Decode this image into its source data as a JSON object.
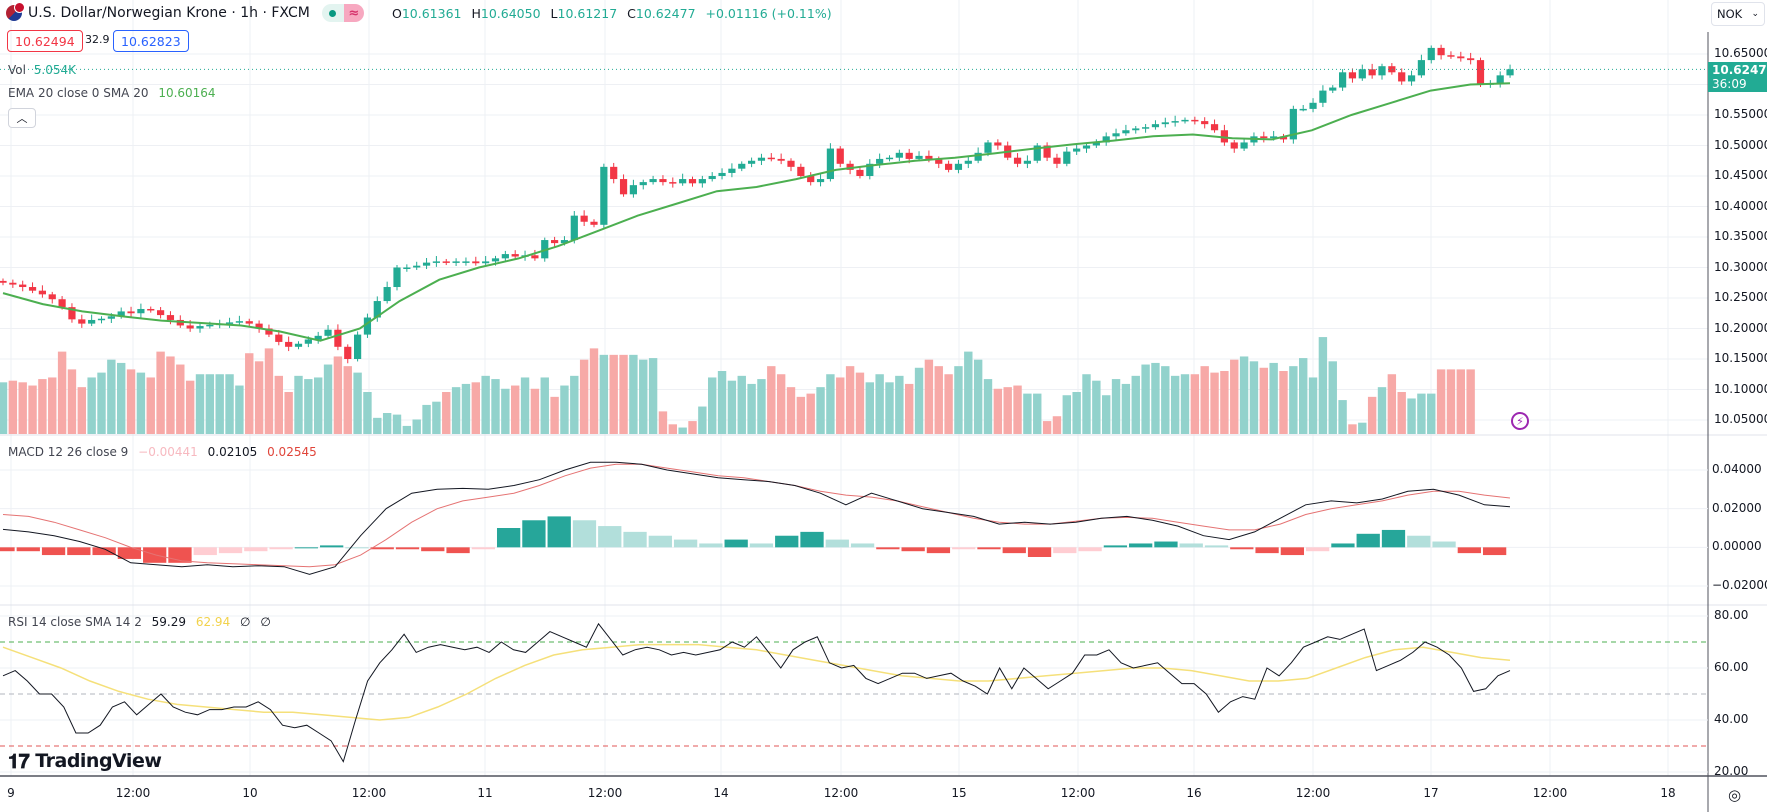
{
  "header": {
    "symbol_title": "U.S. Dollar/Norwegian Krone · 1h · FXCM",
    "flag_icon": "us-no-flag-icon",
    "market_status": "open",
    "ohlc": {
      "open_label": "O",
      "open": "10.61361",
      "high_label": "H",
      "high": "10.64050",
      "low_label": "L",
      "low": "10.61217",
      "close_label": "C",
      "close": "10.62477",
      "change": "+0.01116 (+0.11%)"
    },
    "bid": "10.62494",
    "spread": "32.9",
    "ask": "10.62823"
  },
  "legend": {
    "volume_label": "Vol",
    "volume_value": "5.054K",
    "ema_label": "EMA 20 close 0 SMA 20",
    "ema_value": "10.60164",
    "collapse_icon": "chevron-up-icon",
    "macd_label": "MACD 12 26 close 9",
    "macd_hist": "−0.00441",
    "macd_line": "0.02105",
    "macd_signal": "0.02545",
    "rsi_label": "RSI 14 close SMA 14 2",
    "rsi_value": "59.29",
    "rsi_sma": "62.94",
    "rsi_extra1": "∅",
    "rsi_extra2": "∅"
  },
  "currency_select": "NOK",
  "last_price_tag": {
    "price": "10.62477",
    "countdown": "36:09"
  },
  "branding": "TradingView",
  "colors": {
    "up": "#22ab94",
    "down": "#f23645",
    "vol_up": "#92d2cc",
    "vol_down": "#f7a9a7",
    "ema": "#4caf50",
    "macd": "#131722",
    "signal": "#e57373",
    "rsi": "#131722",
    "rsi_sma": "#f5e07a"
  },
  "chart_data": [
    {
      "type": "candlestick",
      "title": "USD/NOK 1h",
      "price_axis_ticks": [
        "10.65000",
        "10.55000",
        "10.50000",
        "10.45000",
        "10.40000",
        "10.35000",
        "10.30000",
        "10.25000",
        "10.20000",
        "10.15000",
        "10.10000",
        "10.05000"
      ],
      "time_axis_ticks": [
        "9",
        "12:00",
        "10",
        "12:00",
        "11",
        "12:00",
        "14",
        "12:00",
        "15",
        "12:00",
        "16",
        "12:00",
        "17",
        "12:00",
        "18"
      ],
      "ylim": [
        10.03,
        10.68
      ],
      "closes": [
        10.275,
        10.272,
        10.268,
        10.262,
        10.256,
        10.248,
        10.235,
        10.215,
        10.208,
        10.214,
        10.216,
        10.22,
        10.228,
        10.225,
        10.232,
        10.23,
        10.222,
        10.214,
        10.205,
        10.2,
        10.204,
        10.206,
        10.208,
        10.21,
        10.212,
        10.208,
        10.2,
        10.19,
        10.178,
        10.17,
        10.175,
        10.182,
        10.188,
        10.198,
        10.17,
        10.15,
        10.19,
        10.218,
        10.245,
        10.268,
        10.3,
        10.3,
        10.303,
        10.308,
        10.31,
        10.308,
        10.31,
        10.31,
        10.307,
        10.31,
        10.315,
        10.322,
        10.318,
        10.32,
        10.315,
        10.345,
        10.34,
        10.345,
        10.385,
        10.375,
        10.37,
        10.465,
        10.445,
        10.42,
        10.435,
        10.44,
        10.445,
        10.44,
        10.438,
        10.445,
        10.438,
        10.445,
        10.45,
        10.455,
        10.462,
        10.47,
        10.475,
        10.48,
        10.478,
        10.475,
        10.465,
        10.45,
        10.44,
        10.445,
        10.495,
        10.47,
        10.46,
        10.45,
        10.47,
        10.478,
        10.48,
        10.488,
        10.478,
        10.483,
        10.478,
        10.47,
        10.46,
        10.47,
        10.475,
        10.488,
        10.505,
        10.5,
        10.48,
        10.47,
        10.475,
        10.5,
        10.48,
        10.47,
        10.49,
        10.495,
        10.5,
        10.505,
        10.515,
        10.52,
        10.525,
        10.528,
        10.53,
        10.535,
        10.538,
        10.54,
        10.542,
        10.54,
        10.535,
        10.525,
        10.505,
        10.495,
        10.505,
        10.515,
        10.512,
        10.515,
        10.51,
        10.56,
        10.56,
        10.57,
        10.59,
        10.595,
        10.62,
        10.61,
        10.625,
        10.615,
        10.63,
        10.62,
        10.605,
        10.615,
        10.64,
        10.66,
        10.648,
        10.646,
        10.643,
        10.64,
        10.6,
        10.602,
        10.615,
        10.625
      ],
      "volume_k": [
        3.2,
        3.3,
        3.2,
        3.0,
        3.4,
        3.5,
        5.1,
        4.0,
        2.9,
        3.5,
        3.8,
        4.6,
        4.4,
        4.0,
        3.8,
        3.5,
        5.1,
        4.8,
        4.3,
        3.3,
        3.7,
        3.7,
        3.7,
        3.7,
        3.0,
        5.0,
        4.5,
        5.3,
        3.6,
        2.6,
        3.6,
        3.4,
        3.5,
        4.3,
        4.8,
        4.2,
        3.8,
        2.6,
        1.0,
        1.3,
        1.2,
        0.5,
        0.9,
        1.8,
        2.0,
        2.6,
        2.9,
        3.1,
        3.2,
        3.6,
        3.4,
        2.8,
        3.0,
        3.5,
        2.8,
        3.5,
        2.3,
        3.0,
        3.6,
        4.6,
        5.3,
        4.9,
        4.9,
        4.9,
        4.9,
        4.6,
        4.7,
        1.4,
        0.6,
        0.4,
        0.8,
        1.7,
        3.5,
        3.9,
        3.3,
        3.6,
        3.1,
        3.4,
        4.2,
        3.7,
        2.9,
        2.3,
        2.5,
        2.9,
        3.7,
        3.5,
        4.2,
        3.8,
        3.2,
        3.7,
        3.2,
        3.6,
        3.1,
        4.1,
        4.6,
        4.2,
        3.7,
        4.2,
        5.1,
        4.6,
        3.4,
        2.8,
        2.9,
        3.0,
        2.5,
        2.5,
        0.8,
        1.1,
        2.4,
        2.6,
        3.7,
        3.3,
        2.4,
        3.4,
        3.1,
        3.6,
        4.3,
        4.4,
        4.2,
        3.6,
        3.7,
        3.7,
        4.2,
        3.8,
        3.9,
        4.6,
        4.8,
        4.5,
        4.1,
        4.4,
        3.9,
        4.2,
        4.7,
        3.5,
        6.0,
        4.5,
        2.1,
        0.6,
        0.7,
        2.3,
        2.9,
        3.7,
        2.6,
        2.2,
        2.5,
        2.5,
        4.0,
        4.0,
        4.0,
        4.0
      ],
      "ema20": [
        10.258,
        10.24,
        10.228,
        10.22,
        10.213,
        10.209,
        10.205,
        10.195,
        10.18,
        10.2,
        10.245,
        10.28,
        10.3,
        10.315,
        10.335,
        10.36,
        10.385,
        10.405,
        10.425,
        10.432,
        10.445,
        10.46,
        10.468,
        10.475,
        10.48,
        10.487,
        10.495,
        10.502,
        10.508,
        10.515,
        10.518,
        10.512,
        10.51,
        10.525,
        10.55,
        10.57,
        10.59,
        10.6,
        10.602
      ],
      "series": [
        {
          "name": "MACD",
          "values": [
            0.0093,
            0.008,
            0.006,
            0.003,
            -0.001,
            -0.008,
            -0.009,
            -0.01,
            -0.009,
            -0.01,
            -0.0095,
            -0.01,
            -0.014,
            -0.01,
            0.006,
            0.02,
            0.028,
            0.03,
            0.0305,
            0.03,
            0.032,
            0.035,
            0.04,
            0.044,
            0.044,
            0.043,
            0.04,
            0.038,
            0.036,
            0.035,
            0.034,
            0.032,
            0.028,
            0.022,
            0.028,
            0.024,
            0.02,
            0.018,
            0.016,
            0.012,
            0.013,
            0.012,
            0.013,
            0.015,
            0.016,
            0.014,
            0.011,
            0.006,
            0.004,
            0.008,
            0.015,
            0.022,
            0.024,
            0.023,
            0.025,
            0.029,
            0.03,
            0.027,
            0.022,
            0.021
          ]
        },
        {
          "name": "Signal",
          "values": [
            0.017,
            0.016,
            0.013,
            0.009,
            0.005,
            0.0,
            -0.004,
            -0.007,
            -0.008,
            -0.0085,
            -0.009,
            -0.0095,
            -0.01,
            -0.009,
            -0.004,
            0.004,
            0.013,
            0.02,
            0.024,
            0.026,
            0.028,
            0.032,
            0.037,
            0.041,
            0.043,
            0.043,
            0.041,
            0.039,
            0.037,
            0.036,
            0.034,
            0.032,
            0.029,
            0.027,
            0.026,
            0.024,
            0.021,
            0.018,
            0.015,
            0.013,
            0.012,
            0.012,
            0.0135,
            0.015,
            0.0155,
            0.015,
            0.013,
            0.011,
            0.009,
            0.009,
            0.012,
            0.017,
            0.02,
            0.022,
            0.024,
            0.027,
            0.029,
            0.029,
            0.027,
            0.0255
          ]
        },
        {
          "name": "Histogram",
          "values": [
            -0.002,
            -0.002,
            -0.004,
            -0.004,
            -0.004,
            -0.006,
            -0.008,
            -0.008,
            -0.004,
            -0.003,
            -0.002,
            -0.001,
            0.0,
            0.001,
            0.0,
            -0.001,
            -0.001,
            -0.002,
            -0.003,
            -0.001,
            0.01,
            0.014,
            0.016,
            0.014,
            0.011,
            0.008,
            0.006,
            0.004,
            0.002,
            0.004,
            0.002,
            0.006,
            0.008,
            0.004,
            0.002,
            -0.001,
            -0.002,
            -0.003,
            -0.001,
            -0.001,
            -0.003,
            -0.005,
            -0.003,
            -0.002,
            0.001,
            0.002,
            0.003,
            0.002,
            0.001,
            -0.001,
            -0.003,
            -0.004,
            -0.002,
            0.002,
            0.007,
            0.009,
            0.006,
            0.003,
            -0.003,
            -0.004
          ]
        }
      ],
      "macd_axis_ticks": [
        "0.04000",
        "0.02000",
        "0.00000",
        "−0.02000"
      ],
      "rsi": [
        57,
        59,
        55,
        50,
        50,
        45,
        35,
        35,
        38,
        45,
        47,
        42,
        46,
        50,
        45,
        43,
        42,
        44,
        44,
        45,
        45,
        47,
        44,
        38,
        37,
        38,
        35,
        32,
        24,
        40,
        55,
        62,
        67,
        73,
        66,
        68,
        69,
        68,
        67,
        68,
        66,
        70,
        67,
        66,
        70,
        74,
        72,
        70,
        68,
        77,
        71,
        65,
        67,
        68,
        67,
        65,
        66,
        65,
        66,
        67,
        70,
        68,
        72,
        66,
        60,
        67,
        70,
        72,
        62,
        60,
        61,
        56,
        54,
        56,
        58,
        58,
        56,
        57,
        58,
        55,
        53,
        50,
        60,
        52,
        60,
        56,
        52,
        55,
        58,
        65,
        65,
        67,
        62,
        60,
        61,
        62,
        58,
        54,
        54,
        50,
        43,
        47,
        49,
        48,
        60,
        57,
        62,
        68,
        70,
        72,
        71,
        73,
        75,
        59,
        61,
        63,
        66,
        70,
        68,
        65,
        60,
        51,
        52,
        57,
        59
      ],
      "rsi_sma": [
        68,
        64,
        60,
        55,
        51,
        48,
        46,
        45,
        44,
        43,
        43,
        42,
        41,
        40,
        41,
        45,
        50,
        56,
        61,
        65,
        67,
        68,
        69,
        69,
        69,
        68,
        67,
        65,
        63,
        61,
        59,
        57,
        56,
        55,
        55,
        56,
        57,
        58,
        59,
        60,
        60,
        59,
        57,
        55,
        55,
        56,
        60,
        64,
        67,
        68,
        66,
        64,
        63
      ],
      "rsi_axis_ticks": [
        "80.00",
        "60.00",
        "40.00",
        "20.00"
      ],
      "rsi_bands": [
        70,
        50,
        30
      ]
    }
  ]
}
